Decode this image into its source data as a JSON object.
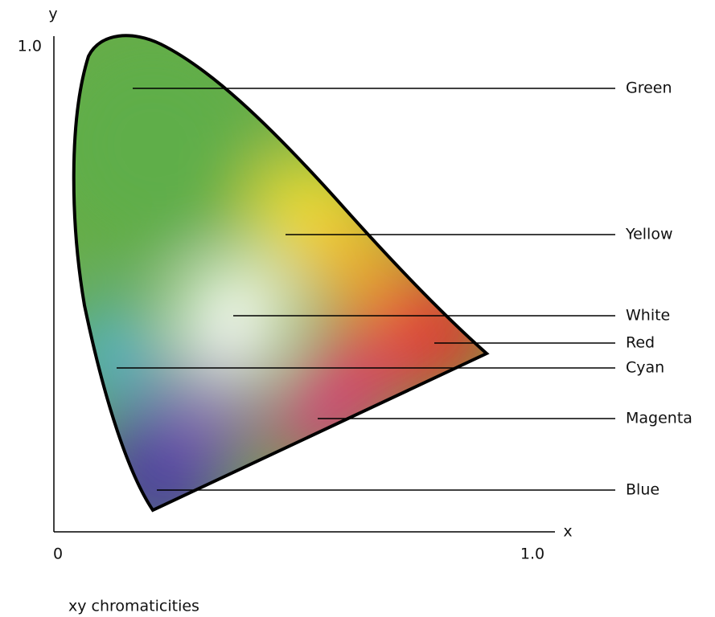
{
  "axes": {
    "y_label": "y",
    "x_label": "x",
    "y_max": "1.0",
    "x_min": "0",
    "x_max": "1.0"
  },
  "regions": [
    {
      "label": "Green"
    },
    {
      "label": "Yellow"
    },
    {
      "label": "White"
    },
    {
      "label": "Red"
    },
    {
      "label": "Cyan"
    },
    {
      "label": "Magenta"
    },
    {
      "label": "Blue"
    }
  ],
  "caption": "xy chromaticities"
}
